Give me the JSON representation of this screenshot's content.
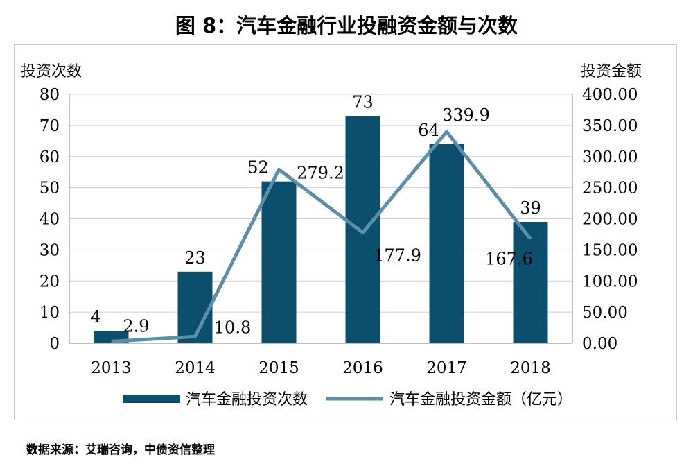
{
  "title": "图 8：汽车金融行业投融资金额与次数",
  "source": "数据来源：艾瑞咨询，中债资信整理",
  "colors": {
    "bar": "#0b4f6c",
    "line": "#5b8ea8",
    "grid": "#d0d0d0",
    "axis": "#808080"
  },
  "chart_data": {
    "type": "bar",
    "categories": [
      "2013",
      "2014",
      "2015",
      "2016",
      "2017",
      "2018"
    ],
    "y_left": {
      "label": "投资次数",
      "ylim": [
        0,
        80
      ],
      "ticks": [
        "0",
        "10",
        "20",
        "30",
        "40",
        "50",
        "60",
        "70",
        "80"
      ]
    },
    "y_right": {
      "label": "投资金额",
      "ylim": [
        0,
        400
      ],
      "ticks": [
        "0.00",
        "50.00",
        "100.00",
        "150.00",
        "200.00",
        "250.00",
        "300.00",
        "350.00",
        "400.00"
      ]
    },
    "series": [
      {
        "name": "汽车金融投资次数",
        "type": "bar",
        "axis": "left",
        "values": [
          4,
          23,
          52,
          73,
          64,
          39
        ],
        "labels": [
          "4",
          "23",
          "52",
          "73",
          "64",
          "39"
        ]
      },
      {
        "name": "汽车金融投资金额（亿元）",
        "type": "line",
        "axis": "right",
        "values": [
          2.9,
          10.8,
          279.2,
          177.9,
          339.9,
          167.6
        ],
        "labels": [
          "2.9",
          "10.8",
          "279.2",
          "177.9",
          "339.9",
          "167.6"
        ]
      }
    ],
    "grid": true,
    "legend": "bottom"
  }
}
